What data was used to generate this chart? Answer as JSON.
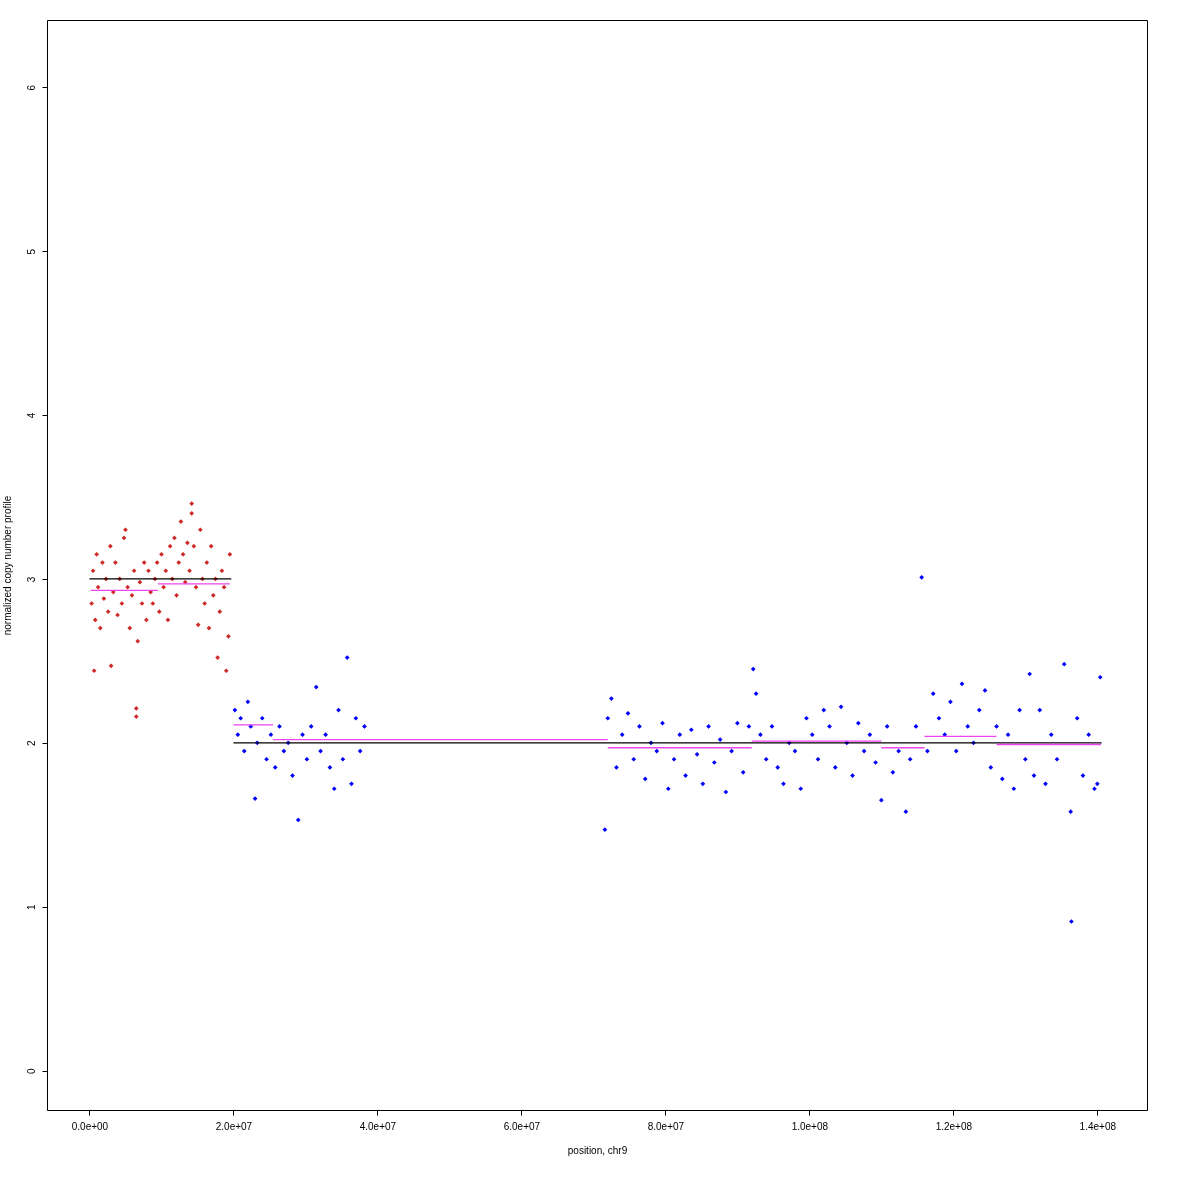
{
  "chart_data": {
    "type": "scatter",
    "xlabel": "position, chr9",
    "ylabel": "normalized copy number profile",
    "xlim": [
      -5900000.0,
      146900000.0
    ],
    "ylim": [
      -0.24,
      6.41
    ],
    "xticks": [
      {
        "value": 0,
        "label": "0.0e+00"
      },
      {
        "value": 20000000.0,
        "label": "2.0e+07"
      },
      {
        "value": 40000000.0,
        "label": "4.0e+07"
      },
      {
        "value": 60000000.0,
        "label": "6.0e+07"
      },
      {
        "value": 80000000.0,
        "label": "8.0e+07"
      },
      {
        "value": 100000000.0,
        "label": "1.0e+08"
      },
      {
        "value": 120000000.0,
        "label": "1.2e+08"
      },
      {
        "value": 140000000.0,
        "label": "1.4e+08"
      }
    ],
    "yticks": [
      0,
      1,
      2,
      3,
      4,
      5,
      6
    ],
    "grid": false,
    "marker": "diamond",
    "line_style": "solid",
    "series": [
      {
        "color": "#d02828",
        "x": [
          300000.0,
          500000.0,
          650000.0,
          800000.0,
          1000000.0,
          1200000.0,
          1500000.0,
          1800000.0,
          2000000.0,
          2300000.0,
          2600000.0,
          2900000.0,
          3000000.0,
          3300000.0,
          3600000.0,
          3900000.0,
          4200000.0,
          4500000.0,
          4800000.0,
          5000000.0,
          5300000.0,
          5600000.0,
          5900000.0,
          6200000.0,
          6500000.0,
          6500000.0,
          6700000.0,
          7000000.0,
          7300000.0,
          7600000.0,
          7900000.0,
          8200000.0,
          8500000.0,
          8800000.0,
          9100000.0,
          9400000.0,
          9700000.0,
          10000000.0,
          10300000.0,
          10600000.0,
          10900000.0,
          11200000.0,
          11500000.0,
          11800000.0,
          12100000.0,
          12400000.0,
          12700000.0,
          13000000.0,
          13300000.0,
          13600000.0,
          13900000.0,
          14200000.0,
          14200000.0,
          14500000.0,
          14800000.0,
          15100000.0,
          15400000.0,
          15700000.0,
          16000000.0,
          16300000.0,
          16600000.0,
          16900000.0,
          17200000.0,
          17500000.0,
          17800000.0,
          18100000.0,
          18400000.0,
          18700000.0,
          19000000.0,
          19300000.0,
          19500000.0
        ],
        "values": [
          2.85,
          3.05,
          2.44,
          2.75,
          3.15,
          2.95,
          2.7,
          3.1,
          2.88,
          3.0,
          2.8,
          3.2,
          2.47,
          2.92,
          3.1,
          2.78,
          3.0,
          2.85,
          3.25,
          3.3,
          2.95,
          2.7,
          2.9,
          3.05,
          2.16,
          2.21,
          2.62,
          2.98,
          2.85,
          3.1,
          2.75,
          3.05,
          2.92,
          2.85,
          3.0,
          3.1,
          2.8,
          3.15,
          2.95,
          3.05,
          2.75,
          3.2,
          3.0,
          3.25,
          2.9,
          3.1,
          3.35,
          3.15,
          2.98,
          3.22,
          3.05,
          3.46,
          3.4,
          3.2,
          2.95,
          2.72,
          3.3,
          3.0,
          2.85,
          3.1,
          2.7,
          3.2,
          2.9,
          3.0,
          2.52,
          2.8,
          3.05,
          2.95,
          2.44,
          2.65,
          3.15
        ]
      },
      {
        "color": "#0000ff",
        "x": [
          20200000.0,
          20600000.0,
          21000000.0,
          21500000.0,
          22000000.0,
          22400000.0,
          23000000.0,
          23300000.0,
          24000000.0,
          24600000.0,
          25200000.0,
          25800000.0,
          26400000.0,
          27000000.0,
          27600000.0,
          28200000.0,
          29000000.0,
          29600000.0,
          30200000.0,
          30800000.0,
          31500000.0,
          32100000.0,
          32800000.0,
          33400000.0,
          34000000.0,
          34600000.0,
          35200000.0,
          35800000.0,
          36400000.0,
          37000000.0,
          37600000.0,
          38200000.0,
          71600000.0,
          72000000.0,
          72500000.0,
          73200000.0,
          74000000.0,
          74800000.0,
          75600000.0,
          76400000.0,
          77200000.0,
          78000000.0,
          78800000.0,
          79600000.0,
          80400000.0,
          81200000.0,
          82000000.0,
          82800000.0,
          83600000.0,
          84400000.0,
          85200000.0,
          86000000.0,
          86800000.0,
          87600000.0,
          88400000.0,
          89200000.0,
          90000000.0,
          90800000.0,
          91600000.0,
          92200000.0,
          92600000.0,
          93200000.0,
          94000000.0,
          94800000.0,
          95600000.0,
          96400000.0,
          97200000.0,
          98000000.0,
          98800000.0,
          99600000.0,
          100400000.0,
          101200000.0,
          102000000.0,
          102800000.0,
          103600000.0,
          104400000.0,
          105200000.0,
          106000000.0,
          106800000.0,
          107600000.0,
          108400000.0,
          109200000.0,
          110000000.0,
          110800000.0,
          111600000.0,
          112400000.0,
          113400000.0,
          114000000.0,
          114800000.0,
          115600000.0,
          116400000.0,
          117200000.0,
          118000000.0,
          118800000.0,
          119600000.0,
          120400000.0,
          121200000.0,
          122000000.0,
          122800000.0,
          123600000.0,
          124400000.0,
          125200000.0,
          126000000.0,
          126800000.0,
          127600000.0,
          128400000.0,
          129200000.0,
          130000000.0,
          130600000.0,
          131200000.0,
          132000000.0,
          132800000.0,
          133600000.0,
          134400000.0,
          135400000.0,
          136300000.0,
          136400000.0,
          137200000.0,
          138000000.0,
          138800000.0,
          139600000.0,
          140000000.0,
          140400000.0
        ],
        "values": [
          2.2,
          2.05,
          2.15,
          1.95,
          2.25,
          2.1,
          1.66,
          2.0,
          2.15,
          1.9,
          2.05,
          1.85,
          2.1,
          1.95,
          2.0,
          1.8,
          1.53,
          2.05,
          1.9,
          2.1,
          2.34,
          1.95,
          2.05,
          1.85,
          1.72,
          2.2,
          1.9,
          2.52,
          1.75,
          2.15,
          1.95,
          2.1,
          1.47,
          2.15,
          2.27,
          1.85,
          2.05,
          2.18,
          1.9,
          2.1,
          1.78,
          2.0,
          1.95,
          2.12,
          1.72,
          1.9,
          2.05,
          1.8,
          2.08,
          1.93,
          1.75,
          2.1,
          1.88,
          2.02,
          1.7,
          1.95,
          2.12,
          1.82,
          2.1,
          2.45,
          2.3,
          2.05,
          1.9,
          2.1,
          1.85,
          1.75,
          2.0,
          1.95,
          1.72,
          2.15,
          2.05,
          1.9,
          2.2,
          2.1,
          1.85,
          2.22,
          2.0,
          1.8,
          2.12,
          1.95,
          2.05,
          1.88,
          1.65,
          2.1,
          1.82,
          1.95,
          1.58,
          1.9,
          2.1,
          3.01,
          1.95,
          2.3,
          2.15,
          2.05,
          2.25,
          1.95,
          2.36,
          2.1,
          2.0,
          2.2,
          2.32,
          1.85,
          2.1,
          1.78,
          2.05,
          1.72,
          2.2,
          1.9,
          2.42,
          1.8,
          2.2,
          1.75,
          2.05,
          1.9,
          2.48,
          1.58,
          0.91,
          2.15,
          1.8,
          2.05,
          1.72,
          1.75,
          2.4
        ]
      },
      {
        "type": "line",
        "marker": "none",
        "color": "#000000",
        "x": [
          0,
          19700000.0
        ],
        "values": [
          3,
          3
        ]
      },
      {
        "type": "line",
        "marker": "none",
        "color": "#000000",
        "x": [
          20000000.0,
          140600000.0
        ],
        "values": [
          2,
          2
        ]
      },
      {
        "type": "line",
        "marker": "none",
        "color": "#ee44ee",
        "x": [
          200000.0,
          9500000.0
        ],
        "values": [
          2.93,
          2.93
        ]
      },
      {
        "type": "line",
        "marker": "none",
        "color": "#ee44ee",
        "x": [
          9500000.0,
          19500000.0
        ],
        "values": [
          2.97,
          2.97
        ]
      },
      {
        "type": "line",
        "marker": "none",
        "color": "#ee44ee",
        "x": [
          20000000.0,
          25500000.0
        ],
        "values": [
          2.11,
          2.11
        ]
      },
      {
        "type": "line",
        "marker": "none",
        "color": "#ee44ee",
        "x": [
          25500000.0,
          72000000.0
        ],
        "values": [
          2.02,
          2.02
        ]
      },
      {
        "type": "line",
        "marker": "none",
        "color": "#ee44ee",
        "x": [
          72000000.0,
          92000000.0
        ],
        "values": [
          1.97,
          1.97
        ]
      },
      {
        "type": "line",
        "marker": "none",
        "color": "#ee44ee",
        "x": [
          92000000.0,
          110000000.0
        ],
        "values": [
          2.01,
          2.01
        ]
      },
      {
        "type": "line",
        "marker": "none",
        "color": "#ee44ee",
        "x": [
          110000000.0,
          116000000.0
        ],
        "values": [
          1.97,
          1.97
        ]
      },
      {
        "type": "line",
        "marker": "none",
        "color": "#ee44ee",
        "x": [
          116000000.0,
          126000000.0
        ],
        "values": [
          2.04,
          2.04
        ]
      },
      {
        "type": "line",
        "marker": "none",
        "color": "#ee44ee",
        "x": [
          126000000.0,
          140500000.0
        ],
        "values": [
          1.99,
          1.99
        ]
      }
    ]
  }
}
